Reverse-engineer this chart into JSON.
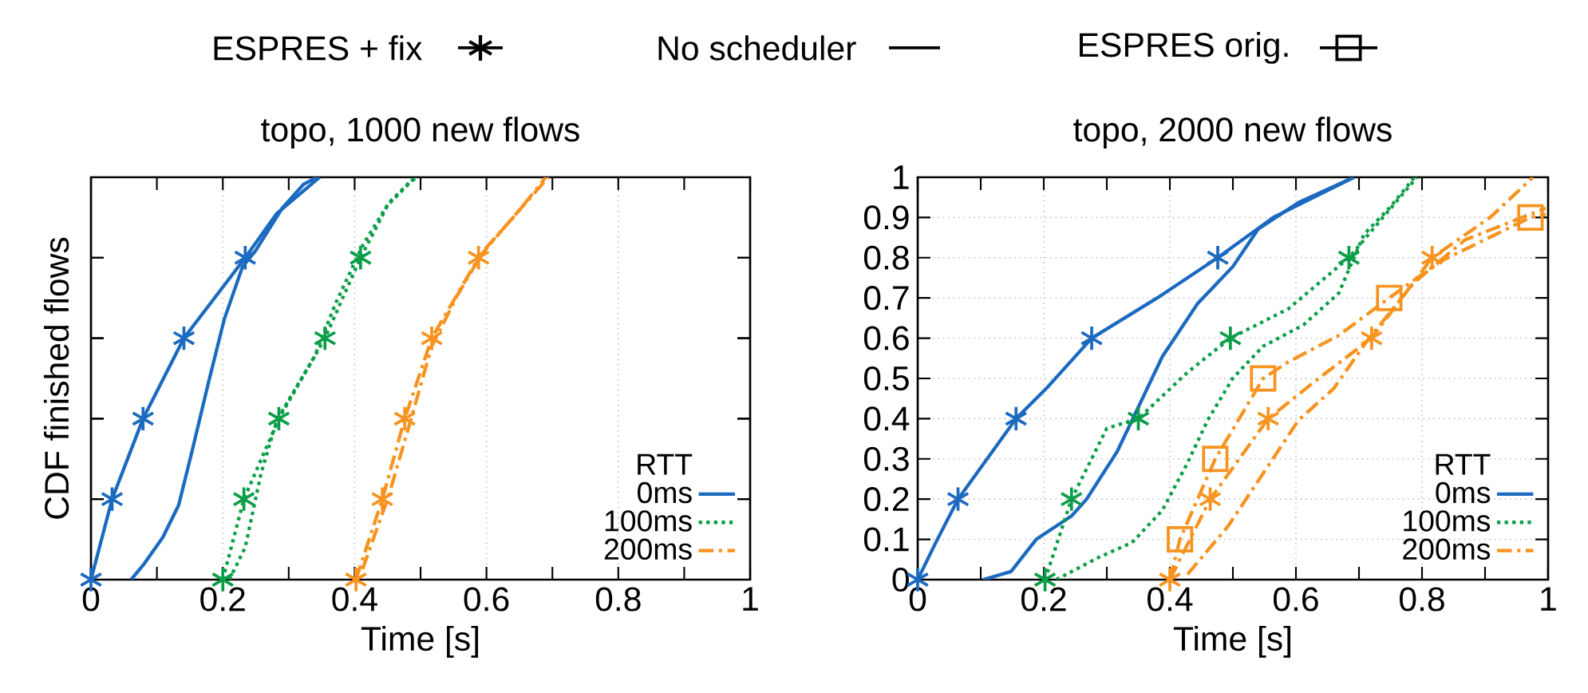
{
  "chart_data": [
    {
      "type": "line",
      "title": "topo, 1000 new flows",
      "xlabel": "Time [s]",
      "ylabel": "CDF finished flows",
      "legend_title": "RTT",
      "legend": "bottom right",
      "grid": "x",
      "tick_labels": "x",
      "annotations": [
        "ESPRES + fix",
        "No scheduler",
        "ESPRES orig."
      ],
      "xlim": [
        0,
        1
      ],
      "ylim": [
        0,
        1
      ],
      "xticks": [
        0,
        {
          "value": 0.1,
          "label": null
        },
        0.2,
        {
          "value": 0.3,
          "label": null
        },
        0.4,
        {
          "value": 0.5,
          "label": null
        },
        0.6,
        {
          "value": 0.7,
          "label": null
        },
        0.8,
        {
          "value": 0.9,
          "label": null
        },
        1
      ],
      "yticks": [
        {
          "value": 0,
          "label": null
        },
        {
          "value": 0.2,
          "label": null
        },
        {
          "value": 0.4,
          "label": null
        },
        {
          "value": 0.6,
          "label": null
        },
        {
          "value": 0.8,
          "label": null
        },
        {
          "value": 1,
          "label": null
        }
      ],
      "series": [
        {
          "type": "scatter",
          "marker": "cross",
          "color": "#1b6ac0",
          "x": [
            0,
            0.032,
            0.079,
            0.141,
            0.234
          ],
          "values": [
            0,
            0.2,
            0.4,
            0.6,
            0.8
          ]
        },
        {
          "marker": "none",
          "line_style": "solid",
          "color": "#1b6ac0",
          "x": [
            0,
            0.032,
            0.079,
            0.141,
            0.234,
            0.282,
            0.347
          ],
          "values": [
            0,
            0.2,
            0.4,
            0.6,
            0.8,
            0.91,
            1
          ]
        },
        {
          "marker": "none",
          "line_style": "solid",
          "name": "0ms",
          "color": "#1b6ac0",
          "x": [
            0.061,
            0.081,
            0.109,
            0.133,
            0.153,
            0.178,
            0.202,
            0.23,
            0.25,
            0.29,
            0.323,
            0.343
          ],
          "values": [
            0,
            0.04,
            0.105,
            0.185,
            0.317,
            0.488,
            0.646,
            0.778,
            0.818,
            0.923,
            0.983,
            1
          ]
        },
        {
          "type": "scatter",
          "marker": "cross",
          "color": "#0a9e48",
          "x": [
            0.2,
            0.232,
            0.285,
            0.355,
            0.409
          ],
          "values": [
            0,
            0.2,
            0.4,
            0.6,
            0.8
          ]
        },
        {
          "marker": "none",
          "line_style": "dotted",
          "color": "#0a9e48",
          "x": [
            0.2,
            0.232,
            0.285,
            0.355,
            0.409,
            0.45,
            0.492
          ],
          "values": [
            0,
            0.2,
            0.4,
            0.6,
            0.8,
            0.93,
            1
          ]
        },
        {
          "marker": "none",
          "line_style": "dotted",
          "name": "100ms",
          "color": "#0a9e48",
          "x": [
            0.21,
            0.234,
            0.258,
            0.282,
            0.315,
            0.339,
            0.371,
            0.412,
            0.452,
            0.485,
            0.496
          ],
          "values": [
            0,
            0.08,
            0.264,
            0.396,
            0.488,
            0.554,
            0.686,
            0.83,
            0.937,
            0.99,
            1
          ]
        },
        {
          "type": "scatter",
          "marker": "cross",
          "color": "#f7931e",
          "x": [
            0.402,
            0.442,
            0.476,
            0.517,
            0.588
          ],
          "values": [
            0,
            0.2,
            0.4,
            0.6,
            0.8
          ]
        },
        {
          "marker": "none",
          "line_style": "dashdot",
          "color": "#f7931e",
          "x": [
            0.402,
            0.442,
            0.476,
            0.517,
            0.588,
            0.64,
            0.694
          ],
          "values": [
            0,
            0.2,
            0.4,
            0.6,
            0.8,
            0.9,
            1
          ]
        },
        {
          "marker": "none",
          "line_style": "dashdot",
          "name": "200ms",
          "color": "#f7931e",
          "x": [
            0.412,
            0.452,
            0.484,
            0.517,
            0.557,
            0.597,
            0.646,
            0.69
          ],
          "values": [
            0.026,
            0.21,
            0.39,
            0.58,
            0.71,
            0.82,
            0.91,
            1
          ]
        }
      ]
    },
    {
      "type": "line",
      "title": "topo, 2000 new flows",
      "xlabel": "Time [s]",
      "legend_title": "RTT",
      "legend": "bottom right",
      "grid": true,
      "xlim": [
        0,
        1
      ],
      "ylim": [
        0,
        1
      ],
      "xticks": [
        0,
        {
          "value": 0.1,
          "label": null
        },
        0.2,
        {
          "value": 0.3,
          "label": null
        },
        0.4,
        {
          "value": 0.5,
          "label": null
        },
        0.6,
        {
          "value": 0.7,
          "label": null
        },
        0.8,
        {
          "value": 0.9,
          "label": null
        },
        1
      ],
      "yticks": [
        0,
        0.1,
        0.2,
        0.3,
        0.4,
        0.5,
        0.6,
        0.7,
        0.8,
        0.9,
        1
      ],
      "series": [
        {
          "type": "scatter",
          "marker": "cross",
          "color": "#1b6ac0",
          "x": [
            0,
            0.064,
            0.156,
            0.276,
            0.476
          ],
          "values": [
            0,
            0.2,
            0.4,
            0.6,
            0.8
          ]
        },
        {
          "marker": "none",
          "line_style": "solid",
          "color": "#1b6ac0",
          "x": [
            0,
            0.028,
            0.064,
            0.156,
            0.204,
            0.276,
            0.38,
            0.476,
            0.564,
            0.692
          ],
          "values": [
            0,
            0.09,
            0.2,
            0.4,
            0.475,
            0.6,
            0.7,
            0.8,
            0.9,
            1
          ]
        },
        {
          "marker": "none",
          "line_style": "solid",
          "name": "0ms",
          "color": "#1b6ac0",
          "x": [
            0.104,
            0.148,
            0.188,
            0.244,
            0.268,
            0.316,
            0.348,
            0.388,
            0.444,
            0.5,
            0.54,
            0.604,
            0.692
          ],
          "values": [
            0,
            0.02,
            0.1,
            0.158,
            0.2,
            0.317,
            0.422,
            0.554,
            0.686,
            0.778,
            0.871,
            0.937,
            1
          ]
        },
        {
          "type": "scatter",
          "marker": "cross",
          "color": "#0a9e48",
          "x": [
            0.202,
            0.244,
            0.35,
            0.496,
            0.684
          ],
          "values": [
            0,
            0.2,
            0.4,
            0.6,
            0.8
          ]
        },
        {
          "marker": "none",
          "line_style": "dotted",
          "color": "#0a9e48",
          "x": [
            0.202,
            0.244,
            0.3,
            0.35,
            0.428,
            0.496,
            0.588,
            0.684,
            0.792
          ],
          "values": [
            0,
            0.2,
            0.376,
            0.4,
            0.515,
            0.6,
            0.673,
            0.8,
            1
          ]
        },
        {
          "marker": "none",
          "line_style": "dotted",
          "name": "100ms",
          "color": "#0a9e48",
          "x": [
            0.22,
            0.284,
            0.34,
            0.388,
            0.428,
            0.46,
            0.5,
            0.548,
            0.612,
            0.668,
            0.708,
            0.748,
            0.788
          ],
          "values": [
            0,
            0.053,
            0.092,
            0.172,
            0.29,
            0.396,
            0.501,
            0.58,
            0.633,
            0.712,
            0.858,
            0.923,
            1
          ]
        },
        {
          "type": "scatter",
          "marker": "cross",
          "color": "#f7931e",
          "x": [
            0.4,
            0.464,
            0.556,
            0.72,
            0.816
          ],
          "values": [
            0,
            0.2,
            0.4,
            0.6,
            0.8
          ]
        },
        {
          "marker": "none",
          "line_style": "dashdot",
          "color": "#f7931e",
          "x": [
            0.4,
            0.464,
            0.556,
            0.636,
            0.72,
            0.816,
            0.908,
            0.976
          ],
          "values": [
            0,
            0.2,
            0.4,
            0.5,
            0.6,
            0.8,
            0.9,
            1
          ]
        },
        {
          "marker": "none",
          "line_style": "dashdot",
          "name": "200ms",
          "color": "#f7931e",
          "x": [
            0.428,
            0.492,
            0.548,
            0.604,
            0.66,
            0.716,
            0.788,
            0.868,
            0.996
          ],
          "values": [
            0.013,
            0.132,
            0.264,
            0.396,
            0.475,
            0.6,
            0.739,
            0.844,
            0.923
          ]
        },
        {
          "type": "scatter",
          "marker": "square",
          "color": "#f7931e",
          "x": [
            0.416,
            0.472,
            0.548,
            0.748,
            0.972
          ],
          "values": [
            0.1,
            0.3,
            0.5,
            0.7,
            0.9
          ]
        },
        {
          "marker": "none",
          "line_style": "dashdot",
          "color": "#f7931e",
          "x": [
            0.4,
            0.416,
            0.472,
            0.548,
            0.588,
            0.668,
            0.748,
            0.828,
            0.972,
            0.996
          ],
          "values": [
            0,
            0.1,
            0.3,
            0.5,
            0.541,
            0.607,
            0.7,
            0.79,
            0.9,
            0.908
          ]
        }
      ]
    }
  ]
}
